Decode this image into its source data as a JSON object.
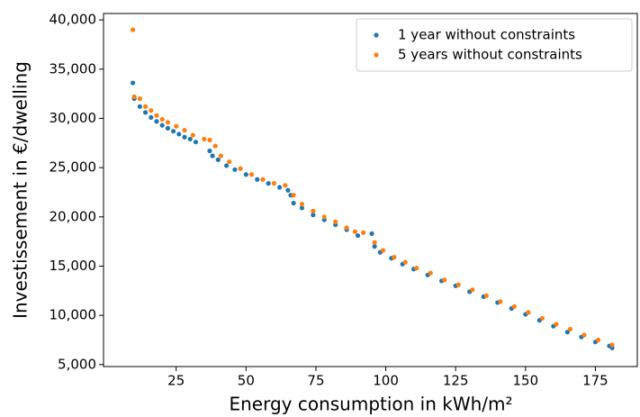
{
  "chart_data": {
    "type": "scatter",
    "xlabel": "Energy consumption in kWh/m²",
    "ylabel": "Investissement in €/dwelling",
    "xlim": [
      -1,
      190
    ],
    "ylim": [
      4800,
      40650
    ],
    "xticks": [
      25,
      50,
      75,
      100,
      125,
      150,
      175
    ],
    "yticks": [
      {
        "value": 5000,
        "label": "5,000"
      },
      {
        "value": 10000,
        "label": "10,000"
      },
      {
        "value": 15000,
        "label": "15,000"
      },
      {
        "value": 20000,
        "label": "20,000"
      },
      {
        "value": 25000,
        "label": "25,000"
      },
      {
        "value": 30000,
        "label": "30,000"
      },
      {
        "value": 35000,
        "label": "35,000"
      },
      {
        "value": 40000,
        "label": "40,000"
      }
    ],
    "legend": "upper right",
    "series": [
      {
        "name": "1 year without constraints",
        "color": "#1f77b4",
        "x": [
          9.5,
          10,
          12,
          14,
          16,
          18,
          20,
          22,
          24,
          26,
          28,
          30,
          32,
          37,
          38,
          40,
          43,
          46,
          50,
          54,
          58,
          62,
          65,
          66,
          67,
          70,
          74,
          78,
          82,
          86,
          90,
          95,
          96,
          98,
          102,
          106,
          110,
          115,
          120,
          125,
          130,
          135,
          140,
          145,
          150,
          155,
          160,
          165,
          170,
          175,
          180,
          181
        ],
        "values": [
          33600,
          32000,
          31200,
          30600,
          30100,
          29700,
          29300,
          29000,
          28700,
          28400,
          28100,
          27900,
          27600,
          26700,
          26200,
          25800,
          25200,
          24800,
          24300,
          23800,
          23400,
          23000,
          22700,
          22200,
          21400,
          20900,
          20200,
          19700,
          19200,
          18700,
          18100,
          18300,
          17000,
          16400,
          15800,
          15200,
          14700,
          14100,
          13500,
          13000,
          12400,
          11900,
          11300,
          10700,
          10100,
          9500,
          8900,
          8300,
          7800,
          7300,
          6900,
          6700
        ]
      },
      {
        "name": "5 years without constraints",
        "color": "#ff7f0e",
        "x": [
          9.5,
          10,
          12,
          14,
          16,
          18,
          20,
          22,
          25,
          28,
          31,
          35,
          37,
          39,
          41,
          44,
          48,
          52,
          56,
          60,
          64,
          67,
          70,
          74,
          78,
          82,
          86,
          89,
          92,
          96,
          99,
          103,
          107,
          111,
          116,
          121,
          126,
          131,
          136,
          141,
          146,
          151,
          156,
          161,
          166,
          171,
          176,
          181
        ],
        "values": [
          39000,
          32200,
          32000,
          31200,
          30800,
          30300,
          29900,
          29600,
          29200,
          28800,
          28300,
          27900,
          27800,
          27200,
          26200,
          25600,
          24900,
          24300,
          23800,
          23400,
          23200,
          22200,
          21300,
          20600,
          20000,
          19500,
          18900,
          18500,
          18400,
          17400,
          16600,
          15900,
          15400,
          14800,
          14300,
          13600,
          13100,
          12600,
          12000,
          11400,
          10900,
          10300,
          9700,
          9100,
          8600,
          8000,
          7500,
          7000
        ]
      }
    ]
  }
}
